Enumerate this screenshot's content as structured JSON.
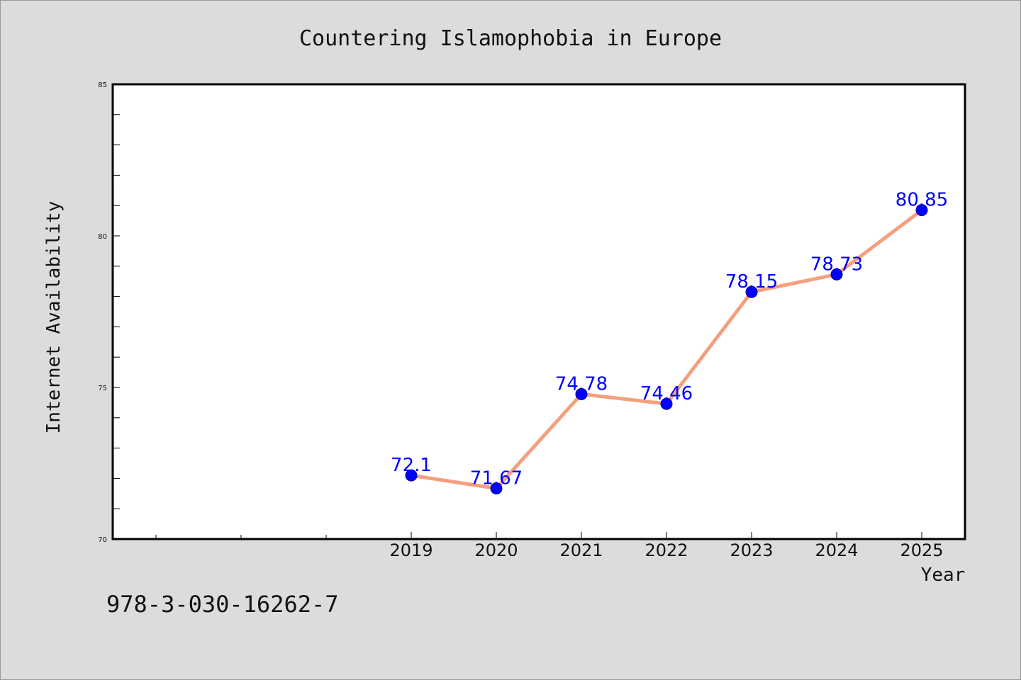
{
  "chart_data": {
    "type": "line",
    "title": "Countering Islamophobia in Europe",
    "xlabel": "Year",
    "ylabel": "Internet Availability",
    "x": [
      "2019",
      "2020",
      "2021",
      "2022",
      "2023",
      "2024",
      "2025"
    ],
    "series": [
      {
        "values": [
          72.1,
          71.67,
          74.78,
          74.46,
          78.15,
          78.73,
          80.85
        ],
        "labels": [
          "72.1",
          "71.67",
          "74.78",
          "74.46",
          "78.15",
          "78.73",
          "80.85"
        ],
        "line_color": "#f4a07e",
        "marker_color": "#0000ff"
      }
    ],
    "ylim": [
      70,
      85
    ],
    "yticks": [
      "70",
      "75",
      "80",
      "85"
    ],
    "grid": false,
    "legend": "none"
  },
  "footer": {
    "isbn": "978-3-030-16262-7"
  },
  "colors": {
    "background": "#dcdcdc",
    "plot_background": "#ffffff",
    "label_color": "#0000ff"
  }
}
